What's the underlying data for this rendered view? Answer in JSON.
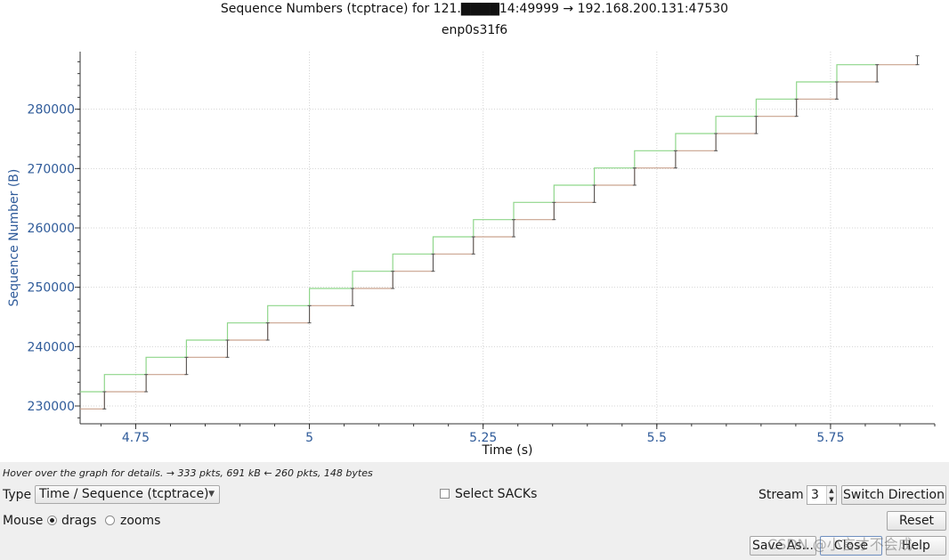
{
  "window": {
    "title": "Sequence Numbers (tcptrace) for 121.▇▇▇▇14:49999 → 192.168.200.131:47530",
    "subtitle": "enp0s31f6"
  },
  "chart_data": {
    "type": "line",
    "title": "Sequence Numbers (tcptrace) for 121.▇▇▇▇14:49999 → 192.168.200.131:47530",
    "subtitle": "enp0s31f6",
    "xlabel": "Time (s)",
    "ylabel": "Sequence Number (B)",
    "x_ticks": [
      "4.75",
      "5",
      "5.25",
      "5.5",
      "5.75"
    ],
    "y_ticks": [
      "230000",
      "240000",
      "250000",
      "260000",
      "270000",
      "280000"
    ],
    "xlim": [
      4.67,
      5.9
    ],
    "ylim": [
      227000,
      289700
    ],
    "grid": true,
    "series": [
      {
        "color": "#c9a38f",
        "style": "step",
        "x": [
          4.67,
          4.705,
          4.705,
          4.765,
          4.765,
          4.823,
          4.823,
          4.882,
          4.882,
          4.94,
          4.94,
          5.0,
          5.0,
          5.062,
          5.062,
          5.12,
          5.12,
          5.178,
          5.178,
          5.236,
          5.236,
          5.294,
          5.294,
          5.352,
          5.352,
          5.41,
          5.41,
          5.468,
          5.468,
          5.527,
          5.527,
          5.585,
          5.585,
          5.643,
          5.643,
          5.701,
          5.701,
          5.759,
          5.759,
          5.817,
          5.817,
          5.875
        ],
        "y": [
          229500,
          229500,
          232400,
          232400,
          235300,
          235300,
          238200,
          238200,
          241100,
          241100,
          244000,
          244000,
          246900,
          246900,
          249800,
          249800,
          252700,
          252700,
          255600,
          255600,
          258500,
          258500,
          261400,
          261400,
          264300,
          264300,
          267200,
          267200,
          270100,
          270100,
          273000,
          273000,
          275900,
          275900,
          278800,
          278800,
          281700,
          281700,
          284600,
          284600,
          287500,
          287500
        ]
      },
      {
        "color": "#8fd68a",
        "style": "step",
        "x": [
          4.67,
          4.705,
          4.705,
          4.765,
          4.765,
          4.823,
          4.823,
          4.882,
          4.882,
          4.94,
          4.94,
          5.0,
          5.0,
          5.062,
          5.062,
          5.12,
          5.12,
          5.178,
          5.178,
          5.236,
          5.236,
          5.294,
          5.294,
          5.352,
          5.352,
          5.41,
          5.41,
          5.468,
          5.468,
          5.527,
          5.527,
          5.585,
          5.585,
          5.643,
          5.643,
          5.701,
          5.701,
          5.759,
          5.759,
          5.817
        ],
        "y": [
          232400,
          232400,
          235300,
          235300,
          238200,
          238200,
          241100,
          241100,
          244000,
          244000,
          246900,
          246900,
          249800,
          249800,
          252700,
          252700,
          255600,
          255600,
          258500,
          258500,
          261400,
          261400,
          264300,
          264300,
          267200,
          267200,
          270100,
          270100,
          273000,
          273000,
          275900,
          275900,
          278800,
          278800,
          281700,
          281700,
          284600,
          284600,
          287500,
          287500
        ]
      }
    ],
    "segments": {
      "color": "#555555",
      "x": [
        4.705,
        4.765,
        4.823,
        4.882,
        4.94,
        5.0,
        5.062,
        5.12,
        5.178,
        5.236,
        5.294,
        5.352,
        5.41,
        5.468,
        5.527,
        5.585,
        5.643,
        5.701,
        5.759,
        5.817,
        5.875
      ],
      "y0": [
        229500,
        232400,
        235300,
        238200,
        241100,
        244000,
        246900,
        249800,
        252700,
        255600,
        258500,
        261400,
        264300,
        267200,
        270100,
        273000,
        275900,
        278800,
        281700,
        284600,
        287500
      ],
      "y1": [
        232400,
        235300,
        238200,
        241100,
        244000,
        246900,
        249800,
        252700,
        255600,
        258500,
        261400,
        264300,
        267200,
        270100,
        273000,
        275900,
        278800,
        281700,
        284600,
        287500,
        289000
      ]
    }
  },
  "status": {
    "text": "Hover over the graph for details. → 333 pkts, 691 kB ← 260 pkts, 148 bytes"
  },
  "controls": {
    "type_label": "Type",
    "type_value": "Time / Sequence (tcptrace)",
    "select_sacks_label": "Select SACKs",
    "select_sacks_checked": false,
    "stream_label": "Stream",
    "stream_value": "3",
    "switch_direction_label": "Switch Direction",
    "mouse_label": "Mouse",
    "mouse_drags_label": "drags",
    "mouse_zooms_label": "zooms",
    "mouse_mode": "drags",
    "reset_label": "Reset",
    "save_as_label": "Save As...",
    "close_label": "Close",
    "help_label": "Help"
  },
  "watermark": {
    "text": "CSDN @小言才不会成"
  },
  "colors": {
    "axis_text": "#2f5b9a",
    "grid": "#d4d4d4",
    "series_1": "#c9a38f",
    "series_2": "#8fd68a"
  }
}
